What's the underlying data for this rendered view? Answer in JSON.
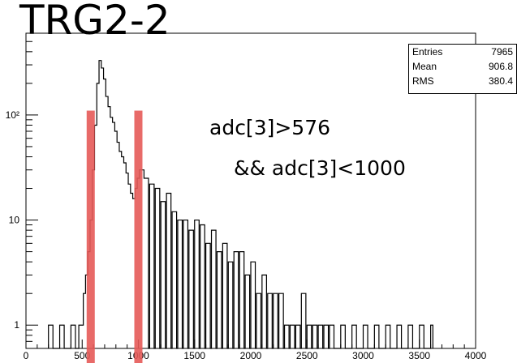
{
  "title": "TRG2-2",
  "stats": [
    {
      "name": "Entries",
      "value": "7965"
    },
    {
      "name": "Mean",
      "value": "906.8"
    },
    {
      "name": "RMS",
      "value": "380.4"
    }
  ],
  "annotations": [
    "adc[3]>576",
    "&& adc[3]<1000"
  ],
  "colors": {
    "cut_marks": "#e65a58",
    "histogram": "#000000"
  },
  "chart_data": {
    "type": "line",
    "title": "TRG2-2",
    "xlabel": "",
    "ylabel": "",
    "xlim": [
      0,
      4000
    ],
    "ylim": [
      0.6,
      600
    ],
    "y_scale": "log",
    "grid": false,
    "legend": "none",
    "x_ticks": [
      "0",
      "500",
      "1000",
      "1500",
      "2000",
      "2500",
      "3000",
      "3500",
      "4000"
    ],
    "x_tick_values": [
      0,
      500,
      1000,
      1500,
      2000,
      2500,
      3000,
      3500,
      4000
    ],
    "y_ticks": [
      "1",
      "10",
      "10²"
    ],
    "y_tick_values": [
      1,
      10,
      100
    ],
    "cut_lines_x": [
      576,
      1000
    ],
    "series": [
      {
        "x": [
          200,
          300,
          400,
          470,
          490,
          510,
          530,
          550,
          570,
          590,
          610,
          630,
          650,
          670,
          690,
          710,
          730,
          750,
          770,
          790,
          810,
          830,
          850,
          870,
          890,
          910,
          930,
          950,
          970,
          990,
          1010,
          1050,
          1100,
          1150,
          1200,
          1250,
          1300,
          1350,
          1400,
          1450,
          1500,
          1550,
          1600,
          1650,
          1700,
          1750,
          1800,
          1850,
          1900,
          1950,
          2000,
          2050,
          2100,
          2150,
          2200,
          2250,
          2300,
          2350,
          2400,
          2450,
          2500,
          2550,
          2600,
          2650,
          2700,
          2800,
          2900,
          3000,
          3100,
          3200,
          3300,
          3400,
          3500,
          3600
        ],
        "y": [
          1,
          1,
          1,
          1,
          1,
          2,
          3,
          5,
          10,
          30,
          80,
          200,
          330,
          280,
          220,
          150,
          120,
          95,
          85,
          70,
          55,
          45,
          40,
          35,
          28,
          22,
          18,
          16,
          20,
          25,
          30,
          25,
          22,
          20,
          15,
          18,
          12,
          10,
          10,
          8,
          10,
          9,
          6,
          8,
          5,
          6,
          4,
          5,
          5,
          3,
          4,
          2,
          3,
          2,
          2,
          2,
          1,
          1,
          1,
          2,
          1,
          1,
          1,
          1,
          1,
          1,
          1,
          1,
          1,
          1,
          1,
          1,
          1,
          1
        ]
      }
    ]
  }
}
